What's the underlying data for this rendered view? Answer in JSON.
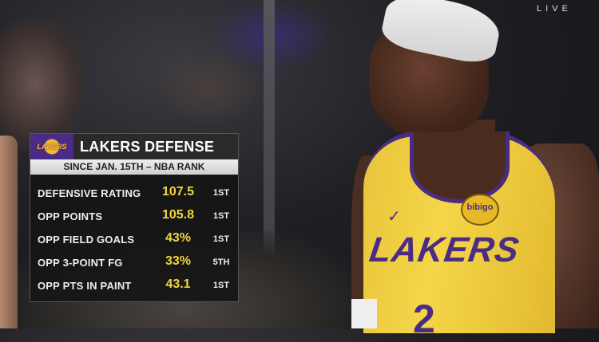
{
  "broadcast": {
    "live_label": "LIVE"
  },
  "graphic": {
    "logo_text": "LAKERS",
    "title": "LAKERS DEFENSE",
    "subtitle": "SINCE JAN. 15TH – NBA RANK",
    "accent_color": "#f0d640",
    "brand_color": "#4b2c85",
    "rows": [
      {
        "label": "DEFENSIVE RATING",
        "value": "107.5",
        "rank": "1ST"
      },
      {
        "label": "OPP POINTS",
        "value": "105.8",
        "rank": "1ST"
      },
      {
        "label": "OPP FIELD GOALS",
        "value": "43%",
        "rank": "1ST"
      },
      {
        "label": "OPP 3-POINT FG",
        "value": "33%",
        "rank": "5TH"
      },
      {
        "label": "OPP PTS IN PAINT",
        "value": "43.1",
        "rank": "1ST"
      }
    ]
  },
  "jersey": {
    "wordmark": "LAKERS",
    "sponsor": "bibigo",
    "number": "2"
  }
}
